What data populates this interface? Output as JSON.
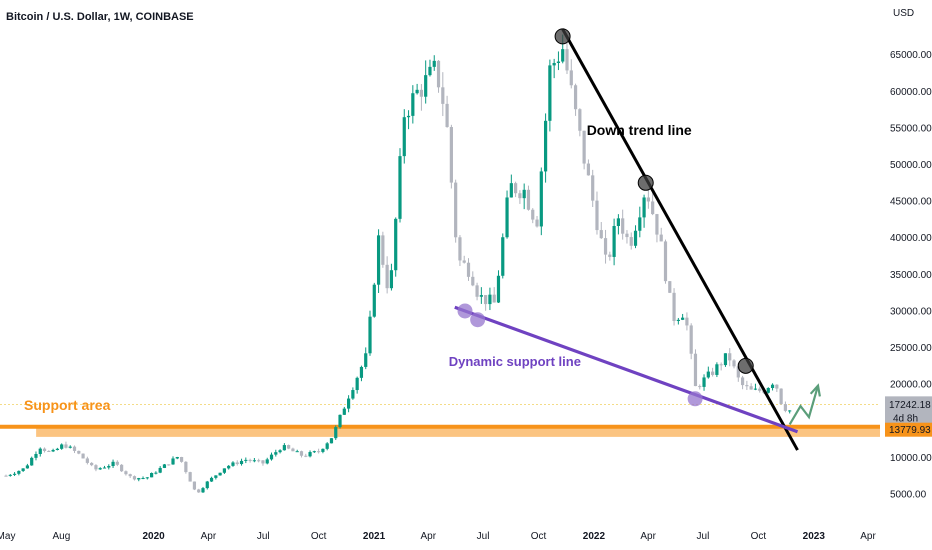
{
  "header": {
    "title": "Bitcoin / U.S. Dollar, 1W, COINBASE",
    "currency": "USD"
  },
  "colors": {
    "up": "#089981",
    "down": "#b2b5be",
    "accent_support": "#f7931a",
    "support_line": "#6f42c1",
    "trend_line": "#000000",
    "arrow": "#5b9e7a",
    "price_tag_bg": "#b2b5be"
  },
  "price_tags": {
    "last_price": "17242.18",
    "countdown": "4d 8h",
    "support_price": "13779.93"
  },
  "annotations": {
    "down_trend": "Down trend line",
    "dynamic_support": "Dynamic support line",
    "support_area": "Support area"
  },
  "chart_data": {
    "type": "candlestick",
    "title": "Bitcoin / U.S. Dollar, 1W, COINBASE",
    "y_unit": "USD",
    "ylim": [
      2000,
      70000
    ],
    "x_range": [
      "2019-05",
      "2023-04"
    ],
    "x_ticks": [
      {
        "label": "May",
        "date": "2019-05-01",
        "bold": false
      },
      {
        "label": "Aug",
        "date": "2019-08-01",
        "bold": false
      },
      {
        "label": "2020",
        "date": "2020-01-01",
        "bold": true
      },
      {
        "label": "Apr",
        "date": "2020-04-01",
        "bold": false
      },
      {
        "label": "Jul",
        "date": "2020-07-01",
        "bold": false
      },
      {
        "label": "Oct",
        "date": "2020-10-01",
        "bold": false
      },
      {
        "label": "2021",
        "date": "2021-01-01",
        "bold": true
      },
      {
        "label": "Apr",
        "date": "2021-04-01",
        "bold": false
      },
      {
        "label": "Jul",
        "date": "2021-07-01",
        "bold": false
      },
      {
        "label": "Oct",
        "date": "2021-10-01",
        "bold": false
      },
      {
        "label": "2022",
        "date": "2022-01-01",
        "bold": true
      },
      {
        "label": "Apr",
        "date": "2022-04-01",
        "bold": false
      },
      {
        "label": "Jul",
        "date": "2022-07-01",
        "bold": false
      },
      {
        "label": "Oct",
        "date": "2022-10-01",
        "bold": false
      },
      {
        "label": "2023",
        "date": "2023-01-01",
        "bold": true
      },
      {
        "label": "Apr",
        "date": "2023-04-01",
        "bold": false
      }
    ],
    "y_ticks": [
      {
        "value": 65000,
        "label": "65000.00"
      },
      {
        "value": 60000,
        "label": "60000.00"
      },
      {
        "value": 55000,
        "label": "55000.00"
      },
      {
        "value": 50000,
        "label": "50000.00"
      },
      {
        "value": 45000,
        "label": "45000.00"
      },
      {
        "value": 40000,
        "label": "40000.00"
      },
      {
        "value": 35000,
        "label": "35000.00"
      },
      {
        "value": 30000,
        "label": "30000.00"
      },
      {
        "value": 25000,
        "label": "25000.00"
      },
      {
        "value": 20000,
        "label": "20000.00"
      },
      {
        "value": 10000,
        "label": "10000.00"
      },
      {
        "value": 5000,
        "label": "5000.00"
      }
    ],
    "close_path": [
      [
        "2019-05-01",
        7500
      ],
      [
        "2019-06-01",
        8500
      ],
      [
        "2019-06-26",
        11500
      ],
      [
        "2019-07-15",
        10500
      ],
      [
        "2019-08-05",
        11800
      ],
      [
        "2019-09-01",
        10300
      ],
      [
        "2019-09-25",
        8300
      ],
      [
        "2019-10-28",
        9200
      ],
      [
        "2019-11-25",
        7200
      ],
      [
        "2019-12-20",
        7200
      ],
      [
        "2020-02-12",
        10200
      ],
      [
        "2020-03-12",
        5000
      ],
      [
        "2020-03-30",
        6600
      ],
      [
        "2020-04-29",
        8700
      ],
      [
        "2020-06-01",
        9700
      ],
      [
        "2020-07-01",
        9200
      ],
      [
        "2020-08-01",
        11500
      ],
      [
        "2020-09-05",
        10200
      ],
      [
        "2020-10-01",
        10800
      ],
      [
        "2020-10-25",
        13000
      ],
      [
        "2020-11-20",
        18500
      ],
      [
        "2020-12-20",
        24000
      ],
      [
        "2021-01-08",
        40000
      ],
      [
        "2021-01-27",
        32000
      ],
      [
        "2021-02-20",
        57000
      ],
      [
        "2021-03-15",
        60000
      ],
      [
        "2021-04-14",
        63000
      ],
      [
        "2021-04-30",
        57000
      ],
      [
        "2021-05-20",
        37000
      ],
      [
        "2021-06-10",
        35500
      ],
      [
        "2021-06-24",
        32000
      ],
      [
        "2021-07-20",
        31000
      ],
      [
        "2021-08-14",
        47000
      ],
      [
        "2021-09-07",
        46500
      ],
      [
        "2021-09-28",
        42000
      ],
      [
        "2021-10-20",
        63000
      ],
      [
        "2021-11-10",
        66000
      ],
      [
        "2021-12-01",
        57000
      ],
      [
        "2021-12-20",
        49000
      ],
      [
        "2022-01-22",
        36000
      ],
      [
        "2022-02-10",
        43000
      ],
      [
        "2022-03-01",
        39000
      ],
      [
        "2022-03-28",
        47000
      ],
      [
        "2022-04-20",
        40000
      ],
      [
        "2022-05-12",
        29000
      ],
      [
        "2022-06-01",
        30000
      ],
      [
        "2022-06-18",
        19500
      ],
      [
        "2022-07-15",
        21500
      ],
      [
        "2022-08-12",
        24000
      ],
      [
        "2022-09-01",
        20000
      ],
      [
        "2022-09-20",
        19000
      ],
      [
        "2022-10-10",
        19200
      ],
      [
        "2022-10-28",
        20600
      ],
      [
        "2022-11-10",
        17000
      ],
      [
        "2022-11-22",
        16400
      ]
    ],
    "candle_count": 184,
    "annotations": [
      {
        "text": "Down trend line",
        "kind": "trendline",
        "points": [
          [
            "2021-11-10",
            68500
          ],
          [
            "2022-12-05",
            11000
          ]
        ]
      },
      {
        "text": "Dynamic support line",
        "kind": "trendline",
        "points": [
          [
            "2021-05-15",
            30500
          ],
          [
            "2022-12-05",
            13500
          ]
        ]
      },
      {
        "text": "Support area",
        "kind": "zone",
        "y_range": [
          12800,
          14100
        ]
      }
    ],
    "markers": [
      {
        "series": "down_trend",
        "date": "2021-11-10",
        "value": 67500
      },
      {
        "series": "down_trend",
        "date": "2022-03-28",
        "value": 47500
      },
      {
        "series": "down_trend",
        "date": "2022-09-10",
        "value": 22500
      },
      {
        "series": "dynamic_support",
        "date": "2021-06-01",
        "value": 30000
      },
      {
        "series": "dynamic_support",
        "date": "2021-06-22",
        "value": 28800
      },
      {
        "series": "dynamic_support",
        "date": "2022-06-18",
        "value": 18000
      }
    ],
    "projection_arrow": [
      [
        "2022-11-22",
        14500
      ],
      [
        "2022-12-10",
        17000
      ],
      [
        "2022-12-24",
        15500
      ],
      [
        "2023-01-08",
        19800
      ]
    ],
    "last_price": 17242.18,
    "support_level": 13779.93,
    "grid": false
  }
}
